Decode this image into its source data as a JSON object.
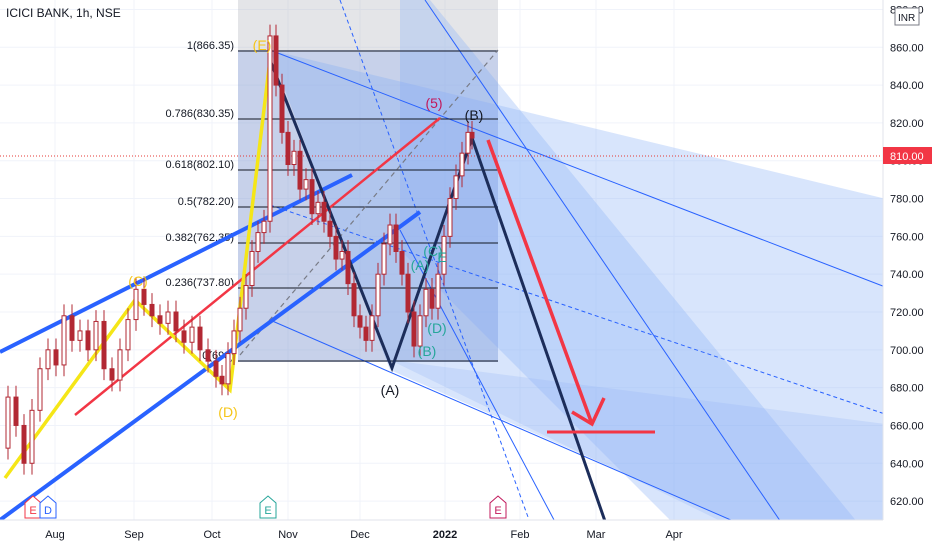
{
  "header": {
    "title": "ICICI BANK, 1h, NSE",
    "currency": "INR"
  },
  "chart_data": {
    "type": "line",
    "title": "ICICI BANK, 1h, NSE",
    "xlabel": "",
    "ylabel": "",
    "ylim": [
      610,
      885
    ],
    "x_ticks": [
      "Aug",
      "Sep",
      "Oct",
      "Nov",
      "Dec",
      "2022",
      "Feb",
      "Mar",
      "Apr"
    ],
    "y_ticks": [
      620,
      640,
      660,
      680,
      700,
      720,
      740,
      760,
      780,
      800,
      820,
      840,
      860,
      880
    ],
    "current_price": 810.0,
    "current_price_label": "810.00",
    "fib_levels": [
      {
        "label": "1(866.35)",
        "value": 866.35
      },
      {
        "label": "0.786(830.35)",
        "value": 830.35
      },
      {
        "label": "0.618(802.10)",
        "value": 802.1
      },
      {
        "label": "0.5(782.20)",
        "value": 782.2
      },
      {
        "label": "0.382(762.35)",
        "value": 762.35
      },
      {
        "label": "0.236(737.80)",
        "value": 737.8
      },
      {
        "label": "0(698)",
        "value": 698
      }
    ],
    "wave_labels": [
      {
        "text": "(E)",
        "color": "#f5c518"
      },
      {
        "text": "(C)",
        "color": "#f5c518"
      },
      {
        "text": "(D)",
        "color": "#f5c518"
      },
      {
        "text": "(5)",
        "color": "#c2185b"
      },
      {
        "text": "(B)",
        "color": "#131722"
      },
      {
        "text": "(A)",
        "color": "#131722"
      },
      {
        "text": "(A)",
        "color": "#26a69a"
      },
      {
        "text": "(C)",
        "color": "#26a69a"
      },
      {
        "text": "E",
        "color": "#26a69a"
      },
      {
        "text": "(D)",
        "color": "#26a69a"
      },
      {
        "text": "(B)",
        "color": "#26a69a"
      }
    ],
    "event_markers": [
      "E",
      "D",
      "E",
      "E"
    ],
    "price_series": [
      {
        "x": 0,
        "y": 648
      },
      {
        "x": 8,
        "y": 675
      },
      {
        "x": 16,
        "y": 660
      },
      {
        "x": 24,
        "y": 640
      },
      {
        "x": 32,
        "y": 668
      },
      {
        "x": 40,
        "y": 690
      },
      {
        "x": 48,
        "y": 700
      },
      {
        "x": 56,
        "y": 692
      },
      {
        "x": 64,
        "y": 718
      },
      {
        "x": 72,
        "y": 705
      },
      {
        "x": 80,
        "y": 710
      },
      {
        "x": 88,
        "y": 700
      },
      {
        "x": 96,
        "y": 715
      },
      {
        "x": 104,
        "y": 690
      },
      {
        "x": 112,
        "y": 684
      },
      {
        "x": 120,
        "y": 700
      },
      {
        "x": 128,
        "y": 716
      },
      {
        "x": 136,
        "y": 732
      },
      {
        "x": 144,
        "y": 724
      },
      {
        "x": 152,
        "y": 718
      },
      {
        "x": 160,
        "y": 714
      },
      {
        "x": 168,
        "y": 720
      },
      {
        "x": 176,
        "y": 710
      },
      {
        "x": 184,
        "y": 704
      },
      {
        "x": 192,
        "y": 712
      },
      {
        "x": 200,
        "y": 700
      },
      {
        "x": 208,
        "y": 694
      },
      {
        "x": 216,
        "y": 686
      },
      {
        "x": 222,
        "y": 682
      },
      {
        "x": 228,
        "y": 698
      },
      {
        "x": 234,
        "y": 710
      },
      {
        "x": 240,
        "y": 722
      },
      {
        "x": 246,
        "y": 734
      },
      {
        "x": 252,
        "y": 752
      },
      {
        "x": 258,
        "y": 762
      },
      {
        "x": 264,
        "y": 768
      },
      {
        "x": 270,
        "y": 866
      },
      {
        "x": 276,
        "y": 840
      },
      {
        "x": 282,
        "y": 815
      },
      {
        "x": 288,
        "y": 798
      },
      {
        "x": 294,
        "y": 805
      },
      {
        "x": 300,
        "y": 785
      },
      {
        "x": 306,
        "y": 790
      },
      {
        "x": 312,
        "y": 772
      },
      {
        "x": 318,
        "y": 778
      },
      {
        "x": 324,
        "y": 768
      },
      {
        "x": 330,
        "y": 760
      },
      {
        "x": 336,
        "y": 748
      },
      {
        "x": 342,
        "y": 752
      },
      {
        "x": 348,
        "y": 735
      },
      {
        "x": 354,
        "y": 718
      },
      {
        "x": 360,
        "y": 712
      },
      {
        "x": 366,
        "y": 705
      },
      {
        "x": 372,
        "y": 718
      },
      {
        "x": 378,
        "y": 740
      },
      {
        "x": 384,
        "y": 756
      },
      {
        "x": 390,
        "y": 766
      },
      {
        "x": 396,
        "y": 752
      },
      {
        "x": 402,
        "y": 740
      },
      {
        "x": 408,
        "y": 720
      },
      {
        "x": 414,
        "y": 702
      },
      {
        "x": 420,
        "y": 718
      },
      {
        "x": 426,
        "y": 732
      },
      {
        "x": 432,
        "y": 722
      },
      {
        "x": 438,
        "y": 740
      },
      {
        "x": 444,
        "y": 760
      },
      {
        "x": 450,
        "y": 780
      },
      {
        "x": 456,
        "y": 792
      },
      {
        "x": 462,
        "y": 804
      },
      {
        "x": 468,
        "y": 815
      },
      {
        "x": 472,
        "y": 812
      }
    ]
  }
}
